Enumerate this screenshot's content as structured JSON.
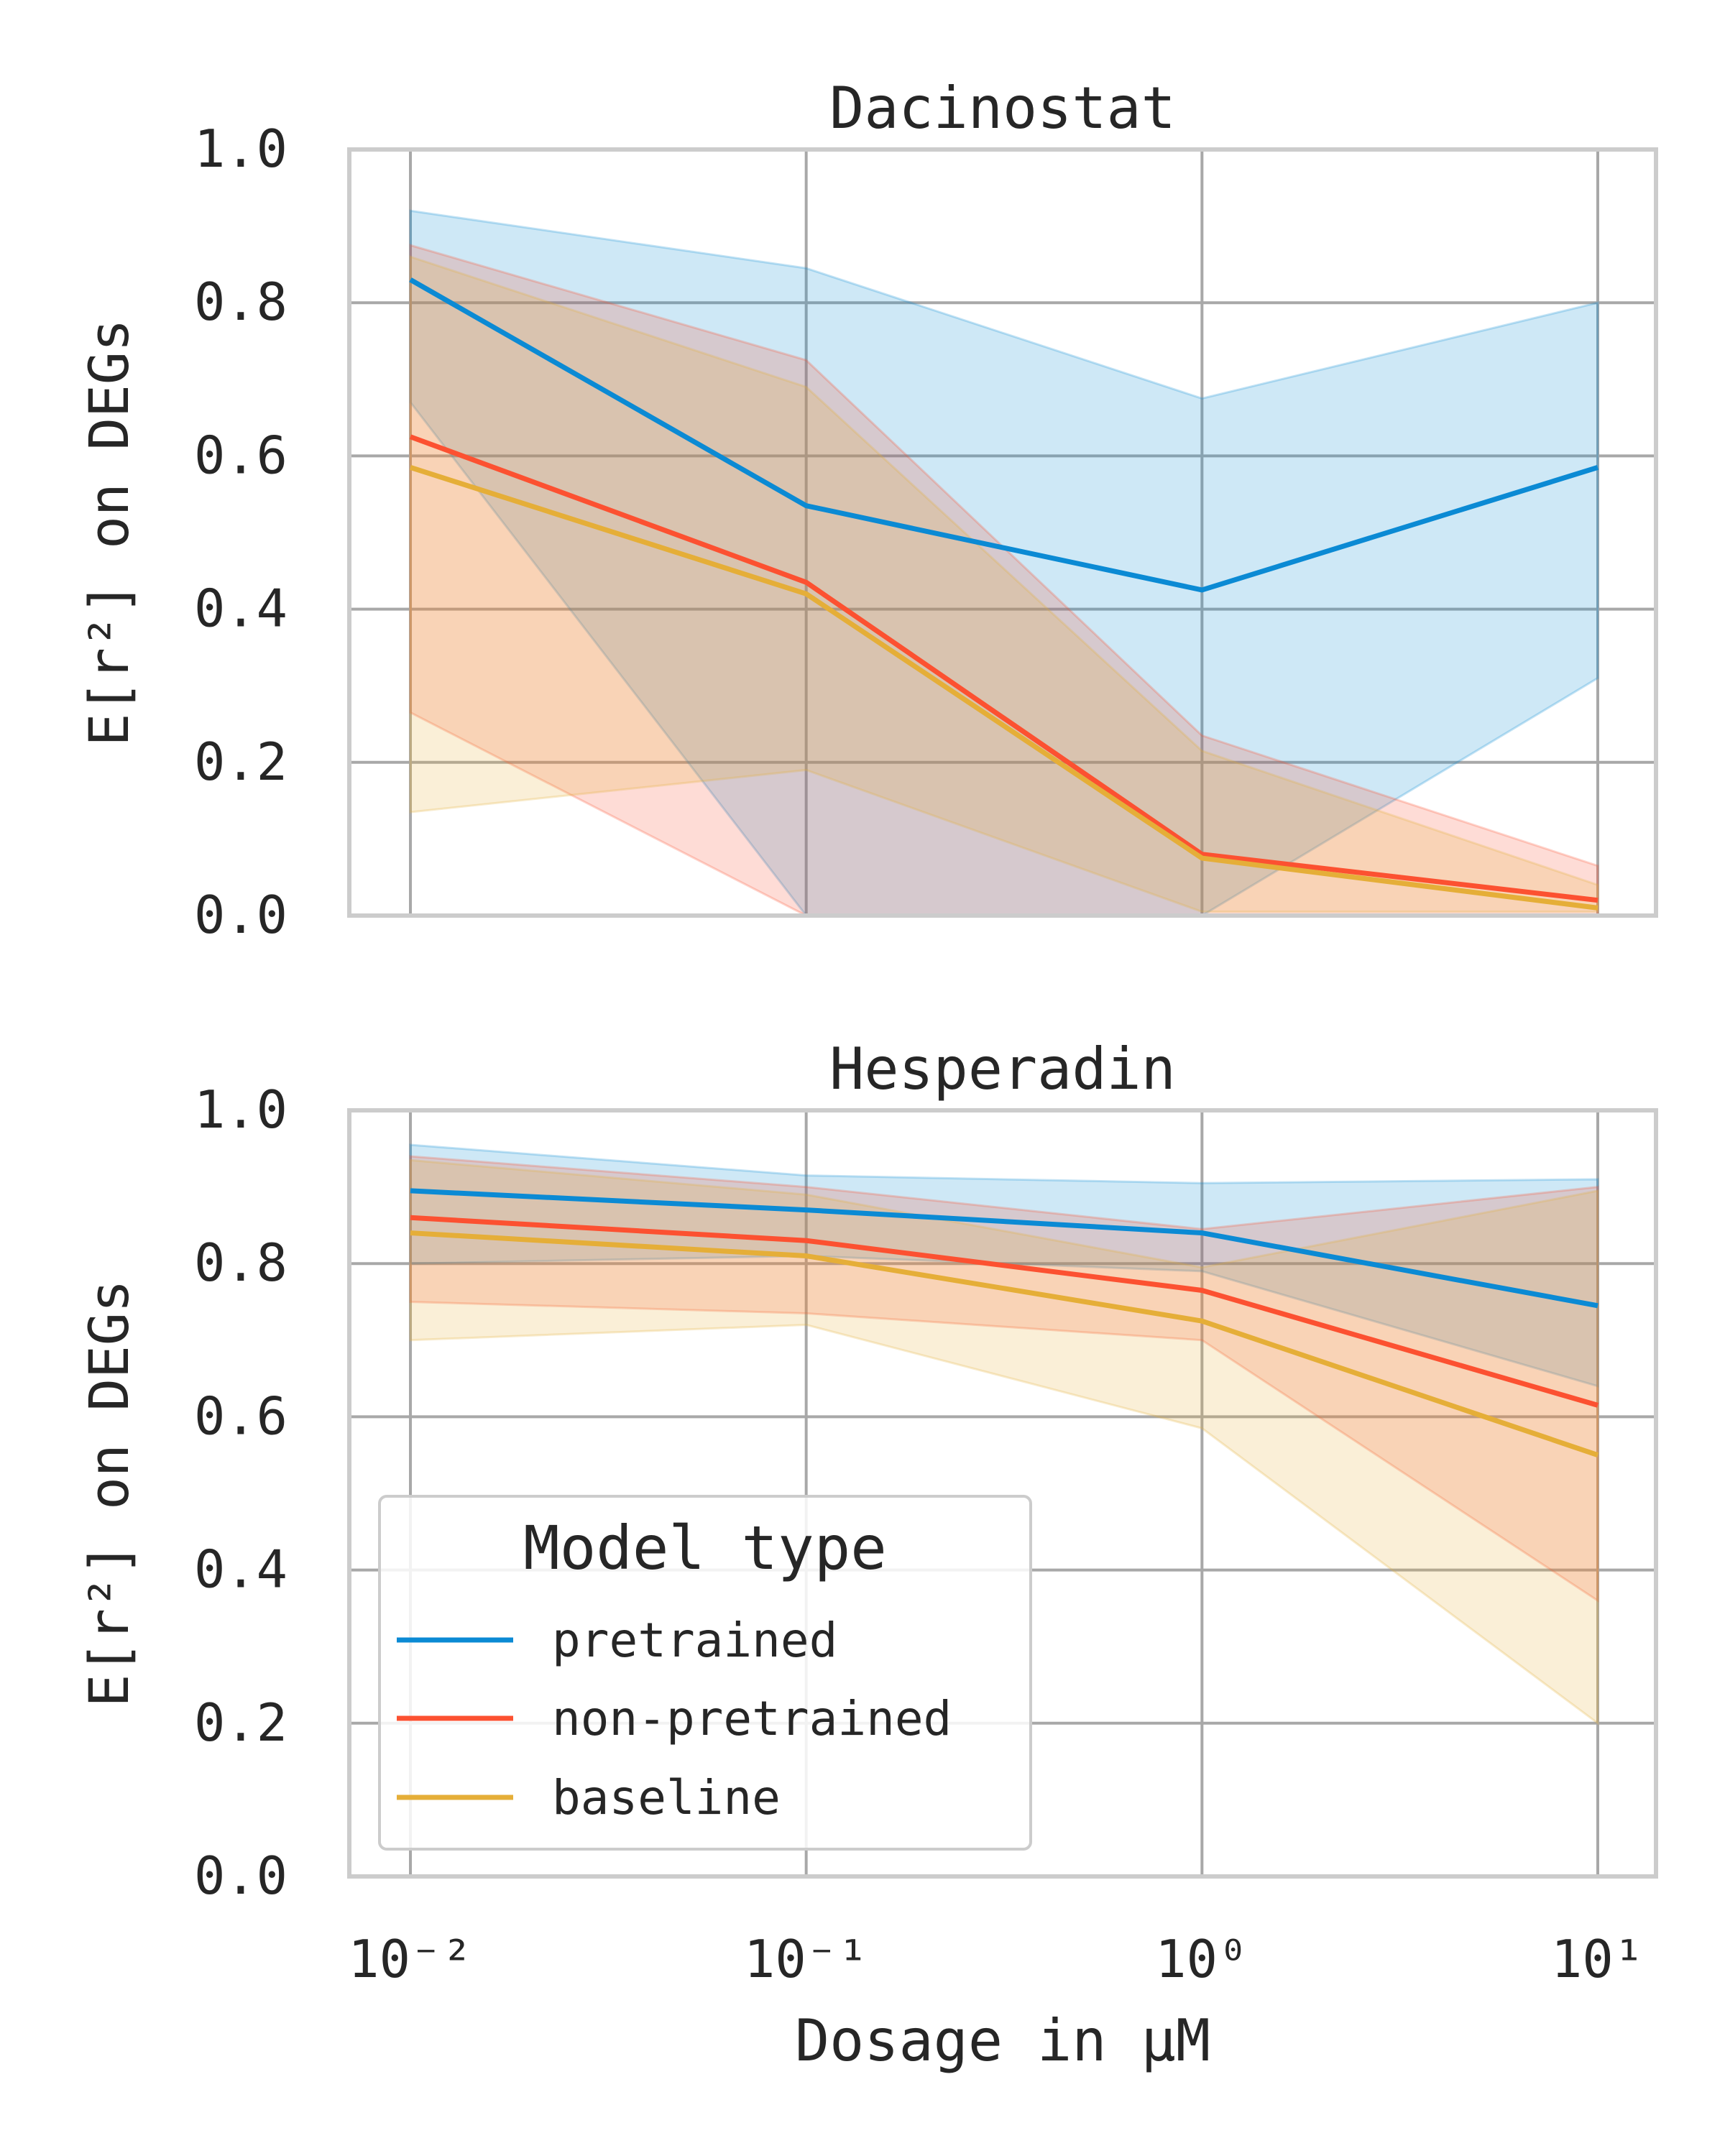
{
  "colors": {
    "pretrained": "#0b8ad4",
    "non-pretrained": "#fc5131",
    "baseline": "#e5ae38"
  },
  "chart_data": [
    {
      "type": "line",
      "title": "Dacinostat",
      "xlabel": "",
      "ylabel": "E[r²] on DEGs",
      "xscale": "log",
      "x": [
        0.01,
        0.1,
        1,
        10
      ],
      "xticklabels": [
        "10⁻²",
        "10⁻¹",
        "10⁰",
        "10¹"
      ],
      "ylim": [
        0,
        1
      ],
      "yticks": [
        "0.0",
        "0.2",
        "0.4",
        "0.6",
        "0.8",
        "1.0"
      ],
      "grid": true,
      "series": [
        {
          "name": "pretrained",
          "values": [
            0.83,
            0.535,
            0.425,
            0.585
          ],
          "lower": [
            0.67,
            0.0,
            0.0,
            0.31
          ],
          "upper": [
            0.92,
            0.845,
            0.675,
            0.8
          ]
        },
        {
          "name": "non-pretrained",
          "values": [
            0.625,
            0.435,
            0.08,
            0.02
          ],
          "lower": [
            0.265,
            0.0,
            0.0,
            0.0
          ],
          "upper": [
            0.875,
            0.725,
            0.235,
            0.065
          ]
        },
        {
          "name": "baseline",
          "values": [
            0.585,
            0.42,
            0.075,
            0.01
          ],
          "lower": [
            0.135,
            0.19,
            0.005,
            0.005
          ],
          "upper": [
            0.86,
            0.69,
            0.215,
            0.04
          ]
        }
      ]
    },
    {
      "type": "line",
      "title": "Hesperadin",
      "xlabel": "Dosage in μM",
      "ylabel": "E[r²] on DEGs",
      "xscale": "log",
      "x": [
        0.01,
        0.1,
        1,
        10
      ],
      "xticklabels": [
        "10⁻²",
        "10⁻¹",
        "10⁰",
        "10¹"
      ],
      "ylim": [
        0,
        1
      ],
      "yticks": [
        "0.0",
        "0.2",
        "0.4",
        "0.6",
        "0.8",
        "1.0"
      ],
      "grid": true,
      "series": [
        {
          "name": "pretrained",
          "values": [
            0.895,
            0.87,
            0.84,
            0.745
          ],
          "lower": [
            0.8,
            0.81,
            0.79,
            0.64
          ],
          "upper": [
            0.955,
            0.915,
            0.905,
            0.91
          ]
        },
        {
          "name": "non-pretrained",
          "values": [
            0.86,
            0.83,
            0.765,
            0.615
          ],
          "lower": [
            0.75,
            0.735,
            0.7,
            0.36
          ],
          "upper": [
            0.94,
            0.9,
            0.845,
            0.9
          ]
        },
        {
          "name": "baseline",
          "values": [
            0.84,
            0.81,
            0.725,
            0.55
          ],
          "lower": [
            0.7,
            0.72,
            0.585,
            0.2
          ],
          "upper": [
            0.935,
            0.89,
            0.795,
            0.895
          ]
        }
      ]
    }
  ],
  "legend": {
    "title": "Model type",
    "placement": "lower-left",
    "entries": [
      "pretrained",
      "non-pretrained",
      "baseline"
    ]
  }
}
